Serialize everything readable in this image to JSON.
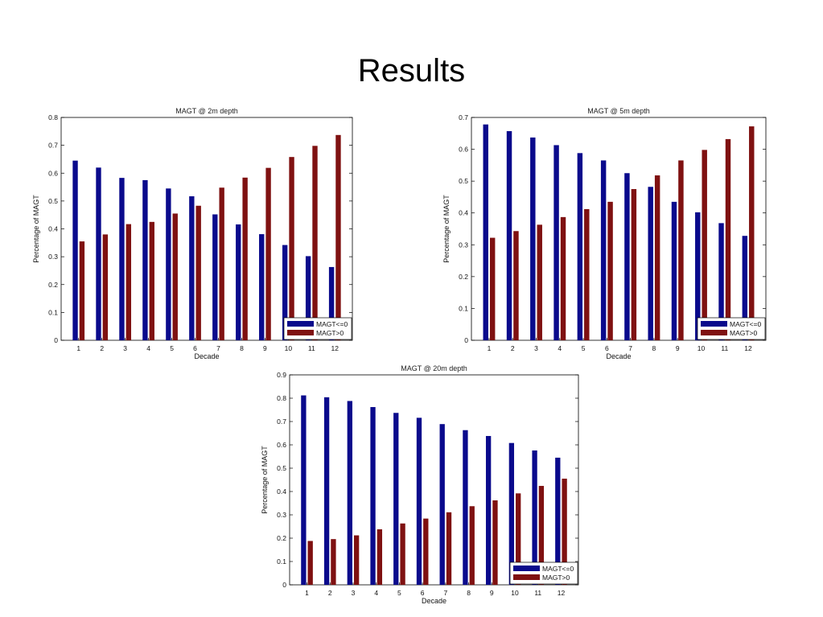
{
  "slide": {
    "title": "Results"
  },
  "colors": {
    "series1": "#0a0a8c",
    "series2": "#7f1111"
  },
  "chart_data": [
    {
      "type": "bar",
      "title": "MAGT @ 2m depth",
      "xlabel": "Decade",
      "ylabel": "Percentage of MAGT",
      "ylim": [
        0,
        0.8
      ],
      "yticks": [
        "0",
        "0.1",
        "0.2",
        "0.3",
        "0.4",
        "0.5",
        "0.6",
        "0.7",
        "0.8"
      ],
      "categories": [
        "1",
        "2",
        "3",
        "4",
        "5",
        "6",
        "7",
        "8",
        "9",
        "10",
        "11",
        "12"
      ],
      "legend_position": "bottom-right",
      "series": [
        {
          "name": "MAGT<=0",
          "values": [
            0.645,
            0.62,
            0.583,
            0.575,
            0.545,
            0.517,
            0.452,
            0.416,
            0.381,
            0.342,
            0.302,
            0.263
          ]
        },
        {
          "name": "MAGT>0",
          "values": [
            0.355,
            0.38,
            0.417,
            0.425,
            0.455,
            0.483,
            0.548,
            0.584,
            0.619,
            0.658,
            0.698,
            0.737
          ]
        }
      ]
    },
    {
      "type": "bar",
      "title": "MAGT @ 5m depth",
      "xlabel": "Decade",
      "ylabel": "Percentage of MAGT",
      "ylim": [
        0,
        0.7
      ],
      "yticks": [
        "0",
        "0.1",
        "0.2",
        "0.3",
        "0.4",
        "0.5",
        "0.6",
        "0.7"
      ],
      "categories": [
        "1",
        "2",
        "3",
        "4",
        "5",
        "6",
        "7",
        "8",
        "9",
        "10",
        "11",
        "12"
      ],
      "legend_position": "bottom-right",
      "series": [
        {
          "name": "MAGT<=0",
          "values": [
            0.678,
            0.657,
            0.637,
            0.613,
            0.588,
            0.565,
            0.525,
            0.482,
            0.435,
            0.402,
            0.368,
            0.328
          ]
        },
        {
          "name": "MAGT>0",
          "values": [
            0.322,
            0.343,
            0.363,
            0.387,
            0.412,
            0.435,
            0.475,
            0.518,
            0.565,
            0.598,
            0.632,
            0.672
          ]
        }
      ]
    },
    {
      "type": "bar",
      "title": "MAGT @ 20m depth",
      "xlabel": "Decade",
      "ylabel": "Percentage of MAGT",
      "ylim": [
        0,
        0.9
      ],
      "yticks": [
        "0",
        "0.1",
        "0.2",
        "0.3",
        "0.4",
        "0.5",
        "0.6",
        "0.7",
        "0.8",
        "0.9"
      ],
      "categories": [
        "1",
        "2",
        "3",
        "4",
        "5",
        "6",
        "7",
        "8",
        "9",
        "10",
        "11",
        "12"
      ],
      "legend_position": "bottom-right",
      "series": [
        {
          "name": "MAGT<=0",
          "values": [
            0.812,
            0.804,
            0.788,
            0.762,
            0.737,
            0.716,
            0.689,
            0.663,
            0.638,
            0.608,
            0.576,
            0.545
          ]
        },
        {
          "name": "MAGT>0",
          "values": [
            0.188,
            0.196,
            0.212,
            0.238,
            0.263,
            0.284,
            0.311,
            0.337,
            0.362,
            0.392,
            0.424,
            0.455
          ]
        }
      ]
    }
  ]
}
